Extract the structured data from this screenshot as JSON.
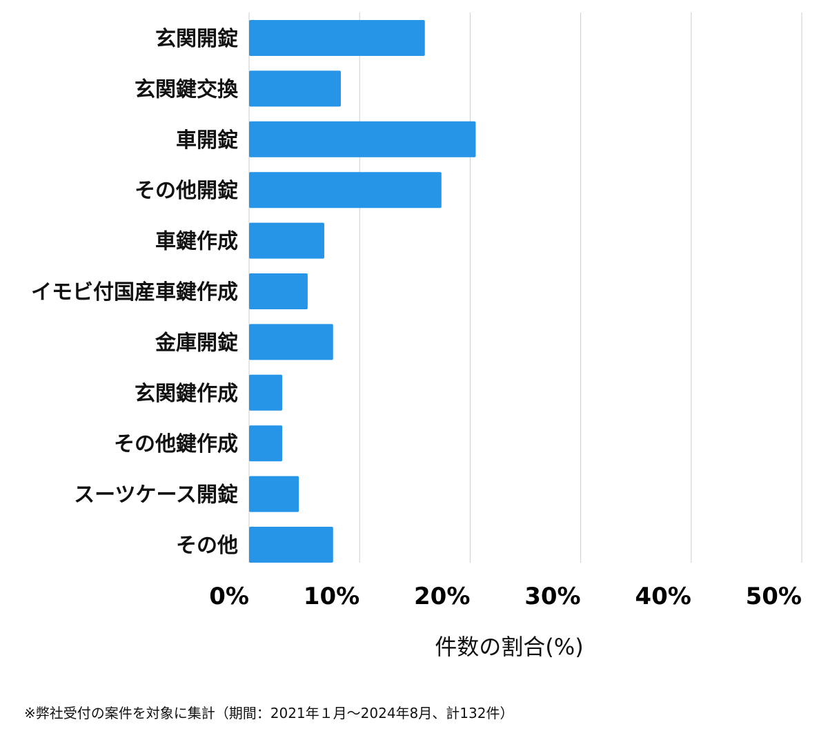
{
  "chart_data": {
    "type": "bar",
    "orientation": "horizontal",
    "categories": [
      "玄関開錠",
      "玄関鍵交換",
      "車開錠",
      "その他開錠",
      "車鍵作成",
      "イモビ付国産車鍵作成",
      "金庫開錠",
      "玄関鍵作成",
      "その他鍵作成",
      "スーツケース開錠",
      "その他"
    ],
    "values": [
      15.9,
      8.3,
      20.5,
      17.4,
      6.8,
      5.3,
      7.6,
      3.0,
      3.0,
      4.5,
      7.6
    ],
    "xlim": [
      0,
      50
    ],
    "xticks": [
      0,
      10,
      20,
      30,
      40,
      50
    ],
    "xtick_labels": [
      "0%",
      "10%",
      "20%",
      "30%",
      "40%",
      "50%"
    ],
    "xlabel": "件数の割合(%)",
    "ylabel": "",
    "title": "",
    "grid": "vertical",
    "legend": "none",
    "bar_color": "#2694e7"
  },
  "footnote": "※弊社受付の案件を対象に集計（期間：2021年１月〜2024年8月、計132件）"
}
